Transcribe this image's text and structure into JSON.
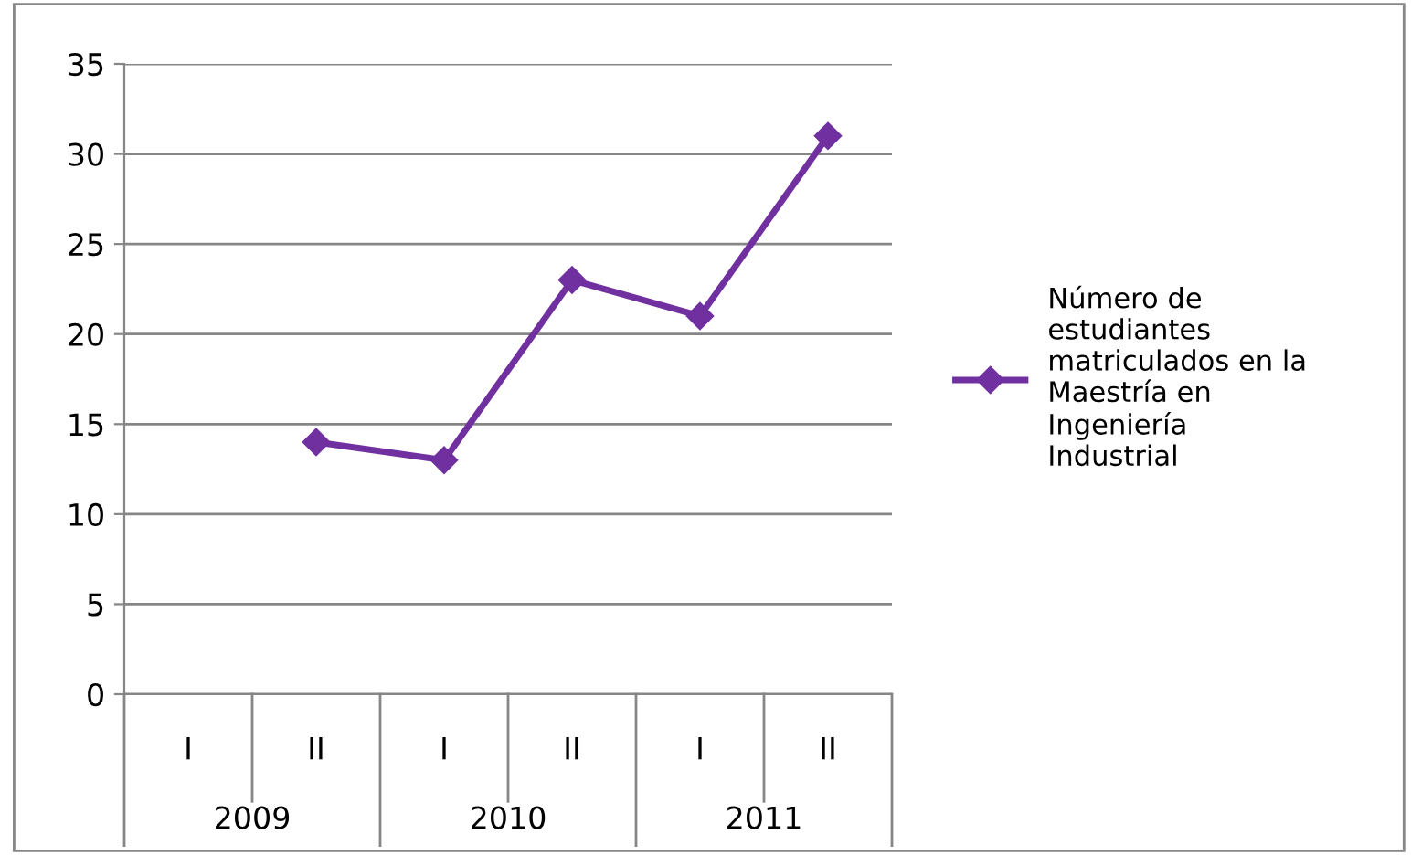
{
  "chart_data": {
    "type": "line",
    "categories": [
      "I",
      "II",
      "I",
      "II",
      "I",
      "II"
    ],
    "series": [
      {
        "name": "Número de estudiantes matriculados en la Maestría en Ingeniería Industrial",
        "color": "#7030a0",
        "values": [
          null,
          14,
          13,
          23,
          21,
          31
        ]
      }
    ],
    "annotations": [
      "2009",
      "2010",
      "2011"
    ],
    "ylim": [
      0,
      35
    ],
    "yticks": [
      0,
      5,
      10,
      15,
      20,
      25,
      30,
      35
    ],
    "grid": "y",
    "legend": "right",
    "marker": "diamond",
    "line_style": "solid"
  }
}
